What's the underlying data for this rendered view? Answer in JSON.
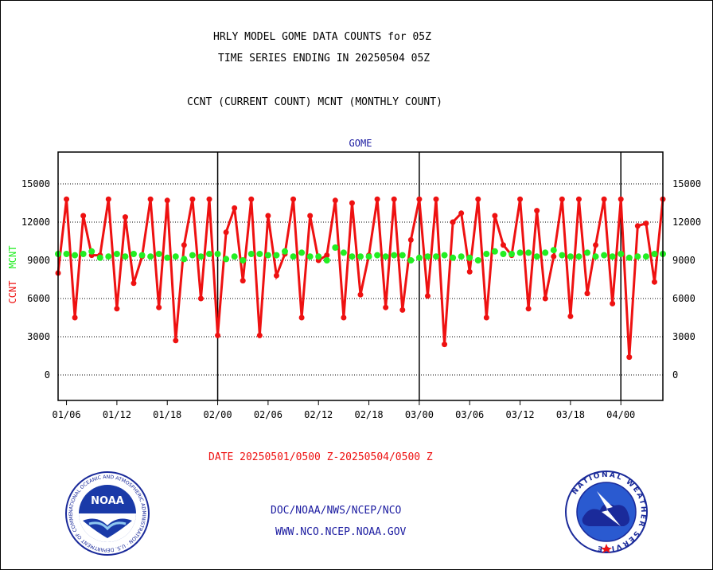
{
  "titles": {
    "line1": "HRLY MODEL GOME DATA COUNTS for 05Z",
    "line2": "TIME SERIES ENDING IN 20250504 05Z",
    "line3": "CCNT (CURRENT COUNT) MCNT (MONTHLY COUNT)"
  },
  "date_range": "DATE 20250501/0500 Z-20250504/0500 Z",
  "footer": {
    "line1": "DOC/NOAA/NWS/NCEP/NCO",
    "line2": "WWW.NCO.NCEP.NOAA.GOV"
  },
  "logos": {
    "noaa": {
      "icon": "noaa-logo-icon",
      "text": "NOAA",
      "ring_text": "NATIONAL OCEANIC AND ATMOSPHERIC ADMINISTRATION U.S. DEPARTMENT OF COMMERCE"
    },
    "nws": {
      "icon": "nws-logo-icon",
      "ring_text": "NATIONAL WEATHER SERVICE"
    }
  },
  "colors": {
    "ccnt": "#ee1111",
    "mcnt": "#22ee22",
    "panel_title": "#1a1aa0",
    "footer": "#1a1aa0",
    "date": "#ee1111"
  },
  "chart_data": {
    "type": "line",
    "title": "GOME",
    "ylabel_left": [
      "CCNT",
      "MCNT"
    ],
    "ylim": [
      -2000,
      17500
    ],
    "yticks": [
      0,
      3000,
      6000,
      9000,
      12000,
      15000
    ],
    "xticks": [
      "01/06",
      "01/12",
      "01/18",
      "02/00",
      "02/06",
      "02/12",
      "02/18",
      "03/00",
      "03/06",
      "03/12",
      "03/18",
      "04/00"
    ],
    "day_boundaries": [
      "02/00",
      "03/00",
      "04/00"
    ],
    "x_start": "01/05",
    "x_end": "04/05",
    "grid": true,
    "series": [
      {
        "name": "CCNT",
        "values": [
          8000,
          13800,
          4500,
          12500,
          9400,
          9400,
          13800,
          5200,
          12400,
          7200,
          9300,
          13800,
          5300,
          13700,
          2700,
          10200,
          13800,
          6000,
          13800,
          3100,
          11200,
          13100,
          7400,
          13800,
          3100,
          12500,
          7800,
          9500,
          13800,
          4500,
          12500,
          9000,
          9400,
          13700,
          4500,
          13500,
          6300,
          9400,
          13800,
          5300,
          13800,
          5100,
          10600,
          13800,
          6200,
          13800,
          2400,
          12000,
          12700,
          8100,
          13800,
          4500,
          12500,
          10200,
          9400,
          13800,
          5200,
          12900,
          6000,
          9300,
          13800,
          4600,
          13800,
          6400,
          10200,
          13800,
          5600,
          13800,
          1400,
          11700,
          11900,
          7300,
          13800
        ]
      },
      {
        "name": "MCNT",
        "values": [
          9500,
          9500,
          9400,
          9500,
          9700,
          9200,
          9300,
          9500,
          9300,
          9500,
          9400,
          9300,
          9500,
          9200,
          9300,
          9100,
          9400,
          9300,
          9500,
          9500,
          9100,
          9300,
          9000,
          9500,
          9500,
          9400,
          9400,
          9700,
          9300,
          9600,
          9300,
          9300,
          9000,
          10000,
          9600,
          9300,
          9300,
          9300,
          9400,
          9300,
          9400,
          9400,
          9000,
          9200,
          9300,
          9300,
          9400,
          9200,
          9300,
          9200,
          9000,
          9500,
          9700,
          9500,
          9500,
          9600,
          9600,
          9300,
          9600,
          9800,
          9400,
          9300,
          9300,
          9600,
          9300,
          9400,
          9300,
          9500,
          9200,
          9300,
          9300,
          9500,
          9500
        ]
      }
    ]
  }
}
